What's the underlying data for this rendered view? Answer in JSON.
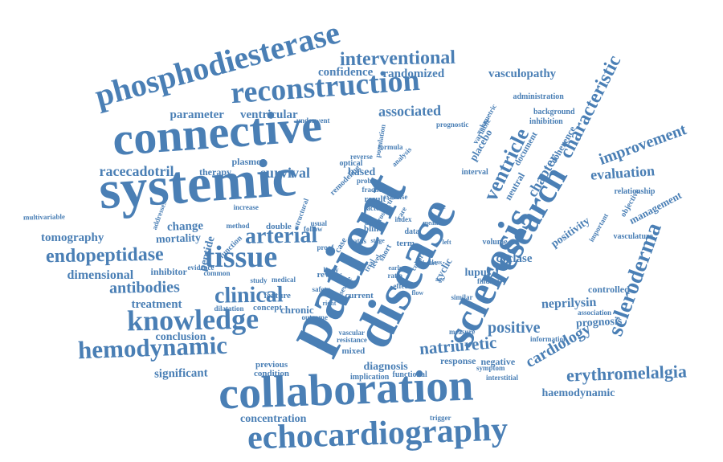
{
  "word_color": "#4a7fb5",
  "background_color": "#ffffff",
  "words": [
    "patient",
    "disease",
    "systemic",
    "connective",
    "collaboration",
    "echocardiography",
    "sclerosis",
    "research",
    "reconstruction",
    "phosphodiesterase",
    "tissue",
    "knowledge",
    "hemodynamic",
    "scleroderma",
    "clinical",
    "arterial",
    "endopeptidase",
    "ventricle",
    "interventional",
    "characteristic",
    "erythromelalgia",
    "antibodies",
    "improvement",
    "natriuretic",
    "racecadotril",
    "positive",
    "cardiology",
    "associated",
    "tomography",
    "evaluation",
    "chapter",
    "survival",
    "parameter",
    "ventricular",
    "dimensional",
    "treatment",
    "significant",
    "neprilysin",
    "prognosis",
    "change",
    "mortality",
    "positivity",
    "management",
    "confidence",
    "randomized",
    "vasculopathy",
    "cyclase",
    "diagnosis",
    "haemodynamic",
    "peptide",
    "lupus",
    "conclusion",
    "concentration",
    "administration",
    "therapy",
    "inhibitor",
    "based",
    "controlled",
    "plasmon",
    "response",
    "negative",
    "placebo",
    "cyclic",
    "coherence",
    "document",
    "neutral",
    "variable",
    "background",
    "inhibition",
    "prognostic",
    "multivariable",
    "method",
    "double",
    "volume",
    "vasculature",
    "relationship",
    "objective",
    "important",
    "association",
    "information",
    "interstitial",
    "symptom",
    "measure",
    "similar",
    "finding",
    "resistance",
    "vascular",
    "mixed",
    "implication",
    "functional",
    "previous",
    "condition",
    "concept",
    "chronic",
    "outcome",
    "dilatation",
    "feature",
    "medical",
    "study",
    "review",
    "current",
    "ratio",
    "effect",
    "proof",
    "evidence",
    "common",
    "function",
    "addresses",
    "follow",
    "case",
    "blind",
    "result",
    "factor",
    "increase",
    "interval",
    "optical",
    "probnp",
    "remodeling",
    "structural",
    "population",
    "underwent",
    "formula",
    "analysis",
    "reverse",
    "fraction",
    "exercise",
    "index",
    "data",
    "term",
    "short",
    "level",
    "trial",
    "safety",
    "severe",
    "trigger",
    "volumetric",
    "prospective",
    "rare",
    "usual",
    "body",
    "cohort",
    "heart",
    "class",
    "status",
    "acute",
    "mean",
    "stage",
    "early",
    "age",
    "rate",
    "left",
    "right",
    "flow",
    "range"
  ]
}
